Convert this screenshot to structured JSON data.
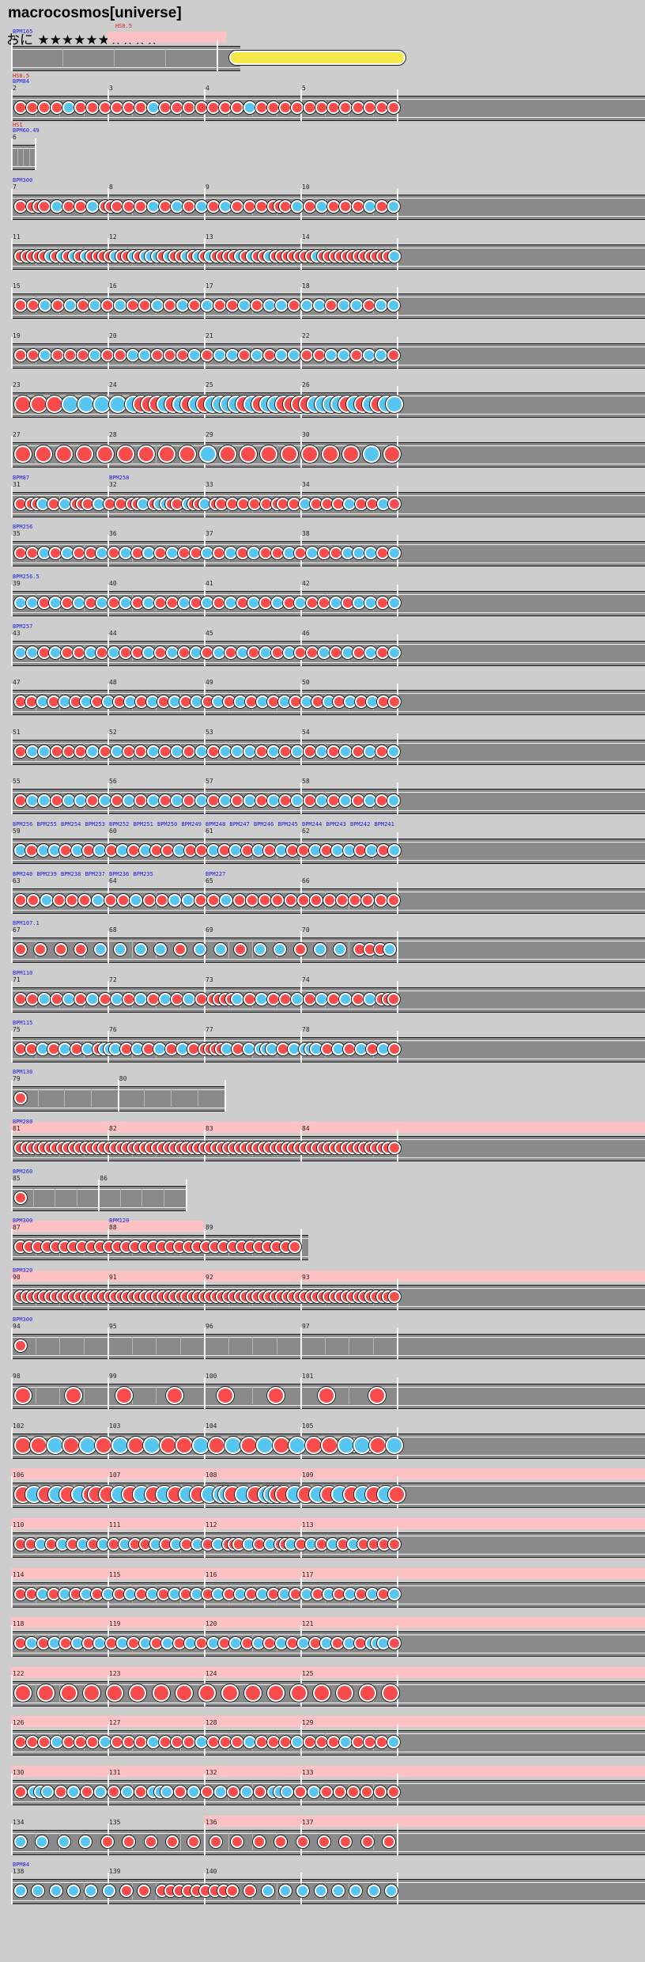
{
  "title": "macrocosmos[universe]",
  "course": {
    "label": "おに",
    "stars": "★★★★★★★★★★",
    "star_count": 10
  },
  "colors": {
    "don": "#f84b4b",
    "ka": "#56c6f0",
    "roll": "#f6e94a",
    "highlight": "#ffc2c4",
    "lane": "#8a8a8a"
  },
  "bpm_events": [
    "BPM165",
    "BPM84",
    "BPM60.49",
    "BPM300",
    "BPM87",
    "BPM258",
    "BPM256",
    "BPM256.5",
    "BPM257",
    "BPM256",
    "BPM255",
    "BPM254",
    "BPM253",
    "BPM252",
    "BPM251",
    "BPM250",
    "BPM249",
    "BPM248",
    "BPM247",
    "BPM246",
    "BPM245",
    "BPM244",
    "BPM243",
    "BPM242",
    "BPM241",
    "BPM240",
    "BPM239",
    "BPM238",
    "BPM237",
    "BPM236",
    "BPM235",
    "BPM227",
    "BPM107.1",
    "BPM110",
    "BPM115",
    "BPM130",
    "BPM280",
    "BPM260",
    "BPM300",
    "BPM120",
    "BPM320",
    "BPM300",
    "BPM84"
  ],
  "hs_events": [
    "HS1.000",
    "HS0.5",
    "HS1"
  ],
  "measure_numbers": [
    "1",
    "2",
    "3",
    "4",
    "5",
    "6",
    "7",
    "8",
    "9",
    "10",
    "11",
    "12",
    "13",
    "14",
    "15",
    "16",
    "17",
    "18",
    "19",
    "20",
    "21",
    "22",
    "23",
    "24",
    "25",
    "26",
    "27",
    "28",
    "29",
    "30",
    "31",
    "32",
    "33",
    "34",
    "35",
    "36",
    "37",
    "38",
    "39",
    "40",
    "41",
    "42",
    "43",
    "44",
    "45",
    "46",
    "47",
    "48",
    "49",
    "50",
    "51",
    "52",
    "53",
    "54",
    "55",
    "56",
    "57",
    "58",
    "59",
    "60",
    "61",
    "62",
    "63",
    "64",
    "65",
    "66",
    "67",
    "68",
    "69",
    "70",
    "71",
    "72",
    "73",
    "74",
    "75",
    "76",
    "77",
    "78",
    "79",
    "80",
    "81",
    "82",
    "83",
    "84",
    "85",
    "86",
    "87",
    "88",
    "89",
    "90",
    "91",
    "92",
    "93",
    "94",
    "95",
    "96",
    "97",
    "98",
    "99",
    "100",
    "101",
    "102",
    "103",
    "104",
    "105",
    "106",
    "107",
    "108",
    "109",
    "110",
    "111",
    "112",
    "113",
    "114",
    "115",
    "116",
    "117",
    "118",
    "119",
    "120",
    "121",
    "122",
    "123",
    "124",
    "125",
    "126",
    "127",
    "128",
    "129",
    "130",
    "131",
    "132",
    "133",
    "134",
    "135",
    "136",
    "137",
    "138",
    "139",
    "140"
  ],
  "rows": [
    {
      "first": 1,
      "measures": 1,
      "half_first": false,
      "highlight": [
        1
      ],
      "events": [
        [
          "bpm",
          0,
          0
        ],
        [
          "hs",
          1,
          1
        ]
      ],
      "notes": "",
      "roll": [
        1.06,
        1.92
      ]
    },
    {
      "first": 2,
      "measures": 4,
      "events": [
        [
          "hs",
          0,
          1
        ],
        [
          "bpm",
          0,
          1
        ]
      ],
      "notes": "D D D D K D D D D D D K D D D D D D D K D D D D D D D D D D D D"
    },
    {
      "first": 3,
      "measures": 1,
      "short": true,
      "events": [
        [
          "hs",
          0,
          2
        ],
        [
          "bpm",
          0,
          2
        ]
      ],
      "notes": ""
    },
    {
      "first": 5,
      "measures": 4,
      "events": [
        [
          "bpm",
          0,
          3
        ]
      ],
      "notes": "D DDD K D D K DDD D D K D K D K D K D D D DDD K D K D D D K D K"
    },
    {
      "first": 12,
      "measures": 4,
      "dense": true,
      "notes": "DDDDDKDKDKDKDDDDKDDKDKKKDKDDKDKDKDDDDKDKDDKDDDDDDDKDDDDDDDDDDDDK"
    },
    {
      "first": 16,
      "measures": 4,
      "notes": "D D K D K D K D K D D K D K D K D D K D K K D K K D K K D K K"
    },
    {
      "first": 20,
      "measures": 4,
      "notes": "D D K D D D K D D K K D D D K D K K D K D K K D D K K D K K D"
    },
    {
      "first": 24,
      "measures": 4,
      "big": true,
      "notes": "D D D K K K K KDDDKDKDKDKKKKDKDKKDDDDKKKKDKDKDKK"
    },
    {
      "first": 28,
      "measures": 4,
      "big": true,
      "notes": "D D D D D D D D D K D D D D D D D K D"
    },
    {
      "first": 32,
      "measures": 4,
      "events": [
        [
          "bpm",
          0,
          4
        ],
        [
          "bpm",
          2,
          5
        ]
      ],
      "notes": "D DDK D K DDD K D D DDK DKKDD KDDK DD D D D D DD D K D D D K D D K D"
    },
    {
      "first": 36,
      "measures": 4,
      "events": [
        [
          "bpm",
          0,
          6
        ]
      ],
      "notes": "D D K D K D D K D K D K D K D D K D K D K D D K D K D D K K K D K"
    },
    {
      "first": 40,
      "measures": 4,
      "events": [
        [
          "bpm",
          0,
          7
        ]
      ],
      "notes": "K K D K D K D K D K D K D D K D K D K D K D K D K D D K D K K D K"
    },
    {
      "first": 44,
      "measures": 4,
      "events": [
        [
          "bpm",
          0,
          8
        ]
      ],
      "notes": "K K D K D D K D K D D K D K D K D K D K D K D K D D K D K D K D K"
    },
    {
      "first": 48,
      "measures": 4,
      "notes": "D D K D K D K D K D K D K D K D K D K D K D K D K D K D K D K D K D D"
    },
    {
      "first": 52,
      "measures": 4,
      "notes": "D K K D D D K D K D D K D K D K D K K K D K D K D K D K D K D K"
    },
    {
      "first": 56,
      "measures": 4,
      "notes": "D K K D K K D K D K D K D K D K D K D K D K D K D K D K D K D K"
    },
    {
      "first": 60,
      "measures": 4,
      "events": [
        [
          "bpm",
          0,
          9
        ],
        [
          "bpm",
          0.5,
          10
        ],
        [
          "bpm",
          1,
          11
        ],
        [
          "bpm",
          1.5,
          12
        ],
        [
          "bpm",
          2,
          13
        ],
        [
          "bpm",
          2.5,
          14
        ],
        [
          "bpm",
          3,
          15
        ],
        [
          "bpm",
          3.5,
          16
        ],
        [
          "bpm",
          4,
          17
        ],
        [
          "bpm",
          4.5,
          18
        ],
        [
          "bpm",
          5,
          19
        ],
        [
          "bpm",
          5.5,
          20
        ],
        [
          "bpm",
          6,
          21
        ],
        [
          "bpm",
          6.5,
          22
        ],
        [
          "bpm",
          7,
          23
        ],
        [
          "bpm",
          7.5,
          24
        ]
      ],
      "notes": "K D K K D K D K D K D K D D K D D K D K D K D K D D K D K K D K D K"
    },
    {
      "first": 64,
      "measures": 4,
      "events": [
        [
          "bpm",
          0,
          25
        ],
        [
          "bpm",
          0.5,
          26
        ],
        [
          "bpm",
          1,
          27
        ],
        [
          "bpm",
          1.5,
          28
        ],
        [
          "bpm",
          2,
          29
        ],
        [
          "bpm",
          2.5,
          30
        ],
        [
          "bpm",
          4,
          31
        ]
      ],
      "notes": "D D K D D D K D D K D D K K D D K D D D D D D D D D D D D D"
    },
    {
      "first": 68,
      "measures": 4,
      "events": [
        [
          "bpm",
          0,
          32
        ]
      ],
      "notes": "D D D D K K K K D K K D K K D K K DDDK"
    },
    {
      "first": 72,
      "measures": 4,
      "events": [
        [
          "bpm",
          0,
          33
        ]
      ],
      "notes": "D D K D K D K D K D K D K D K D DDDDK D K D D K D K D K D K DDD"
    },
    {
      "first": 76,
      "measures": 4,
      "events": [
        [
          "bpm",
          0,
          34
        ]
      ],
      "notes": "D D K D K D K DKKK D K D K D K D DDDDK D K KKK D K KKK D K D K D K D"
    },
    {
      "first": 80,
      "measures": 2,
      "short_w": 0.55,
      "events": [
        [
          "bpm",
          0,
          35
        ]
      ],
      "notes": "D"
    },
    {
      "first": 81,
      "measures": 4,
      "highlight": [
        1,
        2,
        3,
        4
      ],
      "events": [
        [
          "bpm",
          0,
          36
        ]
      ],
      "notes": "DDDDDDDDDDDDDDDDDDDDDDDDDDDDDDDDDDDDDDDDDDDDDDDDDDDDDDDDDDDDDDDD"
    },
    {
      "first": 85,
      "measures": 2,
      "short_w": 0.45,
      "events": [
        [
          "bpm",
          0,
          37
        ]
      ],
      "notes": "D"
    },
    {
      "first": 86,
      "measures": 3,
      "highlight": [
        1,
        2
      ],
      "events": [
        [
          "bpm",
          0,
          38
        ],
        [
          "bpm",
          2,
          39
        ]
      ],
      "notes": "DDDDDDDDDDDDDDDDDDDDDDDDDDDDDDDD"
    },
    {
      "first": 89,
      "measures": 4,
      "highlight": [
        1,
        2,
        3,
        4
      ],
      "events": [
        [
          "bpm",
          0,
          40
        ]
      ],
      "notes": "DDDDDDDDDDDDDDDDDDDDDDDDDDDDDDDDDDDDDDDDDDDDDDDDDDDDDDDDDDDDDDDD"
    },
    {
      "first": 93,
      "measures": 4,
      "events": [
        [
          "bpm",
          0,
          41
        ]
      ],
      "notes": "D"
    },
    {
      "first": 97,
      "measures": 4,
      "big": true,
      "notes": "D D D D D D D D"
    },
    {
      "first": 101,
      "measures": 4,
      "big": true,
      "notes": "D D K D K D K D K D D K D K D K D K D D K K D K",
      "roll": [
        3.45,
        3.8
      ]
    },
    {
      "first": 105,
      "measures": 4,
      "highlight": [
        1,
        2,
        3,
        4
      ],
      "big": true,
      "notes": "D K D K D K DD D K D K D K D K D K KKD K D KKDD K D K D K D K D K D"
    },
    {
      "first": 109,
      "measures": 4,
      "highlight": [
        1,
        2,
        3,
        4
      ],
      "notes": "D D K D K D K D K D K D D K D K D K D K DDD K D K DDK D K D K D K D D D D"
    },
    {
      "first": 113,
      "measures": 4,
      "highlight": [
        1,
        2,
        3,
        4
      ],
      "notes": "D D K D K D K D K D K D K D K D K D K D K D K D K D K D K D K D K D K"
    },
    {
      "first": 117,
      "measures": 4,
      "highlight": [
        1,
        2,
        3,
        4
      ],
      "notes": "D K D K D K D K D K D K D K D K D K D K D K D K D K D K D K D KKK D"
    },
    {
      "first": 121,
      "measures": 4,
      "highlight": [
        1,
        2,
        3,
        4
      ],
      "big": true,
      "notes": "D D D D D D D D D D D D D D D D D"
    },
    {
      "first": 125,
      "measures": 4,
      "highlight": [
        1,
        2,
        3,
        4
      ],
      "notes": "D D D K D D D K D D D K D D D K D D D K D D D K D D D K D D D K"
    },
    {
      "first": 129,
      "measures": 4,
      "highlight": [
        1,
        2,
        3,
        4
      ],
      "notes": "D KKK D K D K D K D KKK D K D K D K D KKK D K D D D D D D"
    },
    {
      "first": 133,
      "measures": 4,
      "highlight": [
        3,
        4
      ],
      "notes": "K K K K D D D D D D D D D D D D D D"
    },
    {
      "first": 137,
      "measures": 4,
      "events": [
        [
          "bpm",
          0,
          42
        ]
      ],
      "notes": "K K K K K K D D DDDDDDDDD D K K K K K K K K"
    }
  ]
}
